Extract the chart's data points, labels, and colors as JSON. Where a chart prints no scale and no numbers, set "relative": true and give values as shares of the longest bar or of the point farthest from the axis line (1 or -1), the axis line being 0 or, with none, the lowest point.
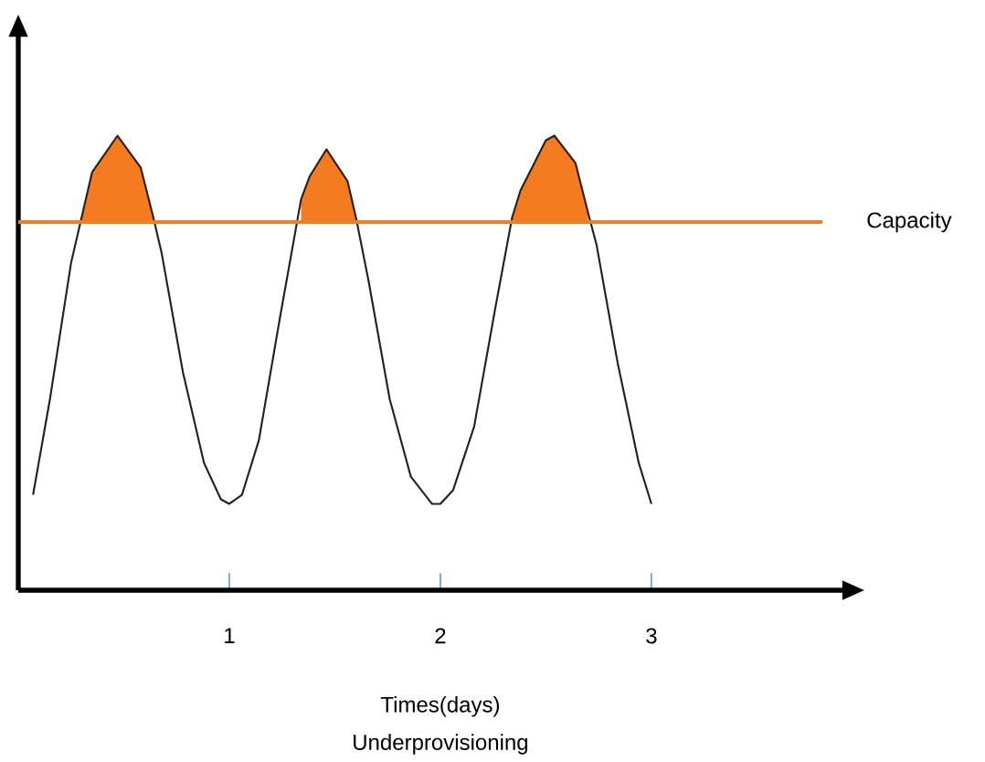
{
  "chart_data": {
    "type": "line",
    "relative": true,
    "xlabel": "Times(days)",
    "annotations": [
      "Underprovisioning"
    ],
    "xlim": [
      0,
      3.81
    ],
    "xticks": [
      1,
      2,
      3
    ],
    "marker": "none",
    "line_style": "solid",
    "grid": false,
    "ref_lines": [
      {
        "axis": "y",
        "value": 0.81,
        "label": "Capacity",
        "color": "#f07f2a"
      }
    ],
    "series": [
      {
        "color": "#222222",
        "x": [
          0.07,
          0.15,
          0.25,
          0.3,
          0.35,
          0.47,
          0.58,
          0.64,
          0.68,
          0.78,
          0.88,
          0.96,
          1.0,
          1.06,
          1.14,
          1.24,
          1.34,
          1.38,
          1.46,
          1.56,
          1.6,
          1.66,
          1.76,
          1.86,
          1.96,
          2.0,
          2.06,
          2.16,
          2.26,
          2.34,
          2.38,
          2.5,
          2.54,
          2.64,
          2.7,
          2.74,
          2.84,
          2.94,
          3.0
        ],
        "values": [
          0.21,
          0.42,
          0.72,
          0.82,
          0.92,
          1.0,
          0.93,
          0.82,
          0.74,
          0.48,
          0.28,
          0.2,
          0.19,
          0.21,
          0.33,
          0.6,
          0.86,
          0.91,
          0.97,
          0.9,
          0.82,
          0.68,
          0.42,
          0.25,
          0.19,
          0.19,
          0.22,
          0.36,
          0.62,
          0.82,
          0.88,
          0.99,
          1.0,
          0.94,
          0.83,
          0.76,
          0.5,
          0.28,
          0.19
        ],
        "lower": [
          null,
          null,
          null,
          0.81,
          0.81,
          0.81,
          0.81,
          0.81,
          null,
          null,
          null,
          null,
          null,
          null,
          null,
          null,
          0.81,
          0.81,
          0.81,
          0.81,
          0.81,
          null,
          null,
          null,
          null,
          null,
          null,
          null,
          null,
          0.81,
          0.81,
          0.81,
          0.81,
          0.81,
          0.81,
          null,
          null,
          null,
          null
        ],
        "upper": [
          null,
          null,
          null,
          0.82,
          0.92,
          1.0,
          0.93,
          0.82,
          null,
          null,
          null,
          null,
          null,
          null,
          null,
          null,
          0.86,
          0.91,
          0.97,
          0.9,
          0.82,
          null,
          null,
          null,
          null,
          null,
          null,
          null,
          null,
          0.82,
          0.88,
          0.99,
          1.0,
          0.94,
          0.83,
          null,
          null,
          null,
          null
        ]
      }
    ]
  }
}
